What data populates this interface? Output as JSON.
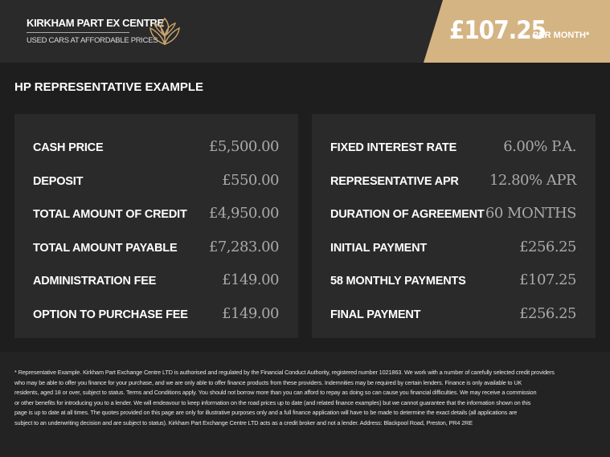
{
  "header": {
    "brand_name": "KIRKHAM PART EX CENTRE",
    "tagline": "USED CARS AT AFFORDABLE PRICES",
    "monthly_price": "£107.25",
    "per_month": "PER MONTH*",
    "accent": "#d4b483",
    "logo_icon": "lotus-icon"
  },
  "title": "HP REPRESENTATIVE EXAMPLE",
  "left": [
    {
      "label": "CASH PRICE",
      "value": "£5,500.00"
    },
    {
      "label": "DEPOSIT",
      "value": "£550.00"
    },
    {
      "label": "TOTAL AMOUNT OF CREDIT",
      "value": "£4,950.00"
    },
    {
      "label": "TOTAL AMOUNT PAYABLE",
      "value": "£7,283.00"
    },
    {
      "label": "ADMINISTRATION FEE",
      "value": "£149.00"
    },
    {
      "label": "OPTION TO PURCHASE FEE",
      "value": "£149.00"
    }
  ],
  "right": [
    {
      "label": "FIXED INTEREST RATE",
      "value": "6.00% P.A."
    },
    {
      "label": "REPRESENTATIVE APR",
      "value": "12.80% APR"
    },
    {
      "label": "DURATION OF AGREEMENT",
      "value": "60 MONTHS"
    },
    {
      "label": "INITIAL PAYMENT",
      "value": "£256.25"
    },
    {
      "label": "58 MONTHLY PAYMENTS",
      "value": "£107.25"
    },
    {
      "label": "FINAL PAYMENT",
      "value": "£256.25"
    }
  ],
  "disclaimer": [
    "* Representative Example. Kirkham Part Exchange Centre LTD is authorised and regulated by the Financial Conduct Authority, registered number 1021863. We work with a number of carefully selected credit providers",
    "who may be able to offer you finance for your purchase, and we are only able to offer finance products from these providers. Indemnities may be required by certain lenders. Finance is only available to UK",
    "residents, aged 18 or over, subject to status. Terms and Conditions apply. You should not borrow more than you can afford to repay as doing so can cause you financial difficulties. We may receive a commission",
    "or other benefits for introducing you to a lender. We will endeavour to keep information on the road prices up to date (and related finance examples) but we cannot guarantee that the information shown on this",
    "page is up to date at all times. The quotes provided on this page are only for illustrative purposes only and a full finance application will have to be made to determine the exact details (all applications are",
    "subject to an underwriting decision and are subject to status). Kirkham Part Exchange Centre LTD acts as a credit broker and not a lender. Address: Blackpool Road, Preston, PR4 2RE"
  ]
}
